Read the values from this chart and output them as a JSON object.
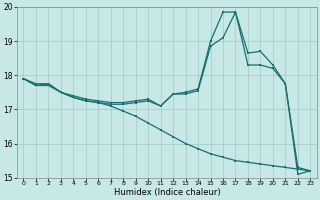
{
  "xlabel": "Humidex (Indice chaleur)",
  "background_color": "#c8e8e8",
  "grid_color": "#a0c8c8",
  "line_color": "#1a6e6e",
  "xlim": [
    -0.5,
    23.5
  ],
  "ylim": [
    15,
    20
  ],
  "yticks": [
    15,
    16,
    17,
    18,
    19,
    20
  ],
  "xticks": [
    0,
    1,
    2,
    3,
    4,
    5,
    6,
    7,
    8,
    9,
    10,
    11,
    12,
    13,
    14,
    15,
    16,
    17,
    18,
    19,
    20,
    21,
    22,
    23
  ],
  "s1_x": [
    0,
    1,
    2,
    3,
    4,
    5,
    6,
    7,
    8,
    9,
    10,
    11,
    12,
    13,
    14,
    15,
    16,
    17,
    18,
    19,
    20,
    21,
    22,
    23
  ],
  "s1_y": [
    17.9,
    17.75,
    17.75,
    17.5,
    17.35,
    17.25,
    17.2,
    17.15,
    17.15,
    17.2,
    17.25,
    17.1,
    17.45,
    17.45,
    17.55,
    18.85,
    19.1,
    19.85,
    18.3,
    18.3,
    18.2,
    17.75,
    15.1,
    15.2
  ],
  "s2_x": [
    0,
    1,
    2,
    3,
    4,
    5,
    6,
    7,
    8,
    9,
    10,
    11,
    12,
    13,
    14,
    15,
    16,
    17,
    18,
    19,
    20,
    21,
    22,
    23
  ],
  "s2_y": [
    17.9,
    17.7,
    17.75,
    17.5,
    17.4,
    17.3,
    17.25,
    17.2,
    17.2,
    17.25,
    17.3,
    17.1,
    17.45,
    17.5,
    17.6,
    19.0,
    19.85,
    19.85,
    18.65,
    18.7,
    18.3,
    17.75,
    15.3,
    15.2
  ],
  "s3_x": [
    0,
    1,
    2,
    3,
    4,
    5,
    6,
    7,
    8,
    9,
    10,
    11,
    12,
    13,
    14,
    15,
    16,
    17,
    18,
    19,
    20,
    21,
    22,
    23
  ],
  "s3_y": [
    17.9,
    17.7,
    17.7,
    17.5,
    17.35,
    17.25,
    17.2,
    17.1,
    16.95,
    16.8,
    16.6,
    16.4,
    16.2,
    16.0,
    15.85,
    15.7,
    15.6,
    15.5,
    15.45,
    15.4,
    15.35,
    15.3,
    15.25,
    15.2
  ]
}
